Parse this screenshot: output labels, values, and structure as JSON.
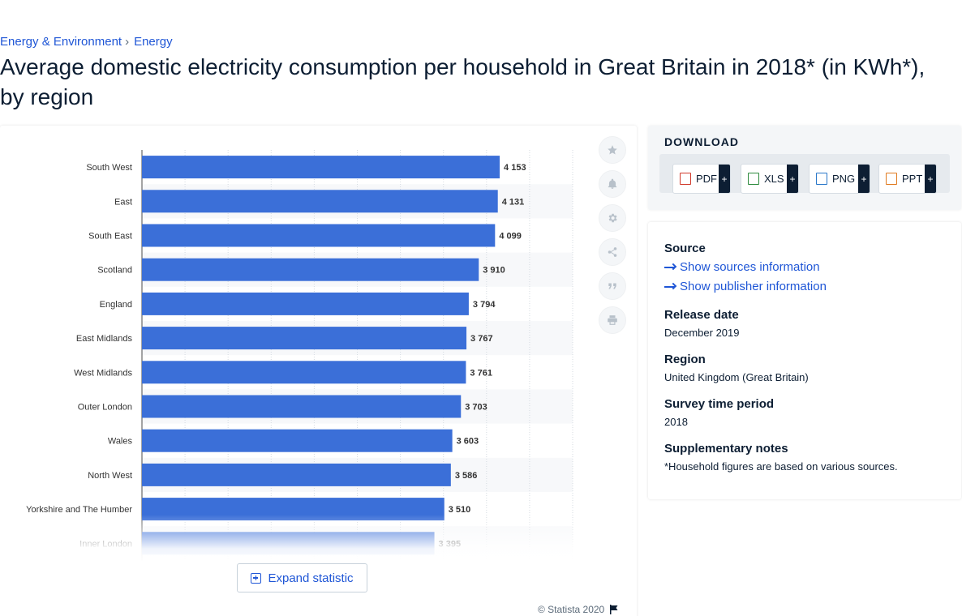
{
  "breadcrumb": {
    "items": [
      "Energy & Environment",
      "Energy"
    ],
    "separator": "›"
  },
  "page_title": "Average domestic electricity consumption per household in Great Britain in 2018* (in KWh*), by region",
  "chart_data": {
    "type": "bar",
    "orientation": "horizontal",
    "categories": [
      "South West",
      "East",
      "South East",
      "Scotland",
      "England",
      "East Midlands",
      "West Midlands",
      "Outer London",
      "Wales",
      "North West",
      "Yorkshire and The Humber",
      "Inner London"
    ],
    "values": [
      4153,
      4131,
      4099,
      3910,
      3794,
      3767,
      3761,
      3703,
      3603,
      3586,
      3510,
      3395
    ],
    "value_labels": [
      "4 153",
      "4 131",
      "4 099",
      "3 910",
      "3 794",
      "3 767",
      "3 761",
      "3 703",
      "3 603",
      "3 586",
      "3 510",
      "3 395"
    ],
    "xlim": [
      0,
      5000
    ],
    "grid": true,
    "bar_color": "#3b6fd8",
    "title": "",
    "xlabel": "",
    "ylabel": ""
  },
  "expand_label": "Expand statistic",
  "copyright": "© Statista 2020",
  "download": {
    "title": "DOWNLOAD",
    "buttons": [
      {
        "label": "PDF",
        "plus": "+",
        "color": "#d0392b"
      },
      {
        "label": "XLS",
        "plus": "+",
        "color": "#2e8b3e"
      },
      {
        "label": "PNG",
        "plus": "+",
        "color": "#2a77c9"
      },
      {
        "label": "PPT",
        "plus": "+",
        "color": "#e07a1f"
      }
    ]
  },
  "info": {
    "source_label": "Source",
    "sources_link": "Show sources information",
    "publisher_link": "Show publisher information",
    "release_label": "Release date",
    "release_value": "December 2019",
    "region_label": "Region",
    "region_value": "United Kingdom (Great Britain)",
    "survey_label": "Survey time period",
    "survey_value": "2018",
    "notes_label": "Supplementary notes",
    "notes_value": "*Household figures are based on various sources."
  },
  "tools": [
    "star-icon",
    "bell-icon",
    "gear-icon",
    "share-icon",
    "quote-icon",
    "print-icon"
  ]
}
